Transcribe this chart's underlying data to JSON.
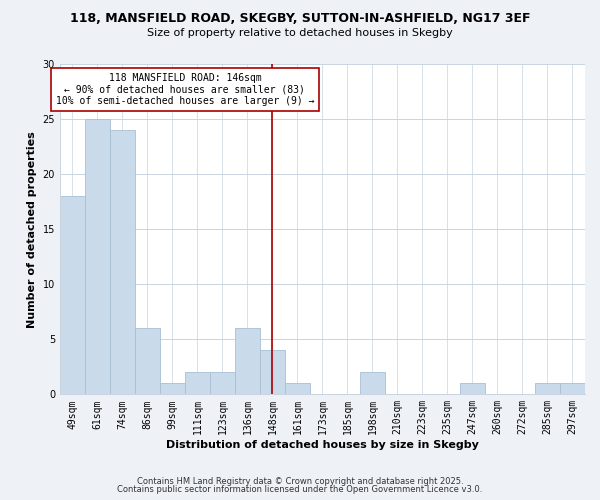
{
  "title_line1": "118, MANSFIELD ROAD, SKEGBY, SUTTON-IN-ASHFIELD, NG17 3EF",
  "title_line2": "Size of property relative to detached houses in Skegby",
  "xlabel": "Distribution of detached houses by size in Skegby",
  "ylabel": "Number of detached properties",
  "categories": [
    "49sqm",
    "61sqm",
    "74sqm",
    "86sqm",
    "99sqm",
    "111sqm",
    "123sqm",
    "136sqm",
    "148sqm",
    "161sqm",
    "173sqm",
    "185sqm",
    "198sqm",
    "210sqm",
    "223sqm",
    "235sqm",
    "247sqm",
    "260sqm",
    "272sqm",
    "285sqm",
    "297sqm"
  ],
  "values": [
    18,
    25,
    24,
    6,
    1,
    2,
    2,
    6,
    4,
    1,
    0,
    0,
    2,
    0,
    0,
    0,
    1,
    0,
    0,
    1,
    1
  ],
  "bar_color": "#c9daea",
  "bar_edge_color": "#a8c0d4",
  "vline_idx": 8,
  "vline_color": "#aa0000",
  "annotation_title": "118 MANSFIELD ROAD: 146sqm",
  "annotation_line1": "← 90% of detached houses are smaller (83)",
  "annotation_line2": "10% of semi-detached houses are larger (9) →",
  "annotation_box_color": "#ffffff",
  "annotation_box_edge": "#aa0000",
  "ylim": [
    0,
    30
  ],
  "yticks": [
    0,
    5,
    10,
    15,
    20,
    25,
    30
  ],
  "footer_line1": "Contains HM Land Registry data © Crown copyright and database right 2025.",
  "footer_line2": "Contains public sector information licensed under the Open Government Licence v3.0.",
  "bg_color": "#eef2f7",
  "plot_bg_color": "#ffffff",
  "grid_color": "#c8d4e0",
  "title_fontsize": 9,
  "subtitle_fontsize": 8,
  "xlabel_fontsize": 8,
  "ylabel_fontsize": 8,
  "tick_fontsize": 7,
  "footer_fontsize": 6,
  "ann_fontsize": 7
}
